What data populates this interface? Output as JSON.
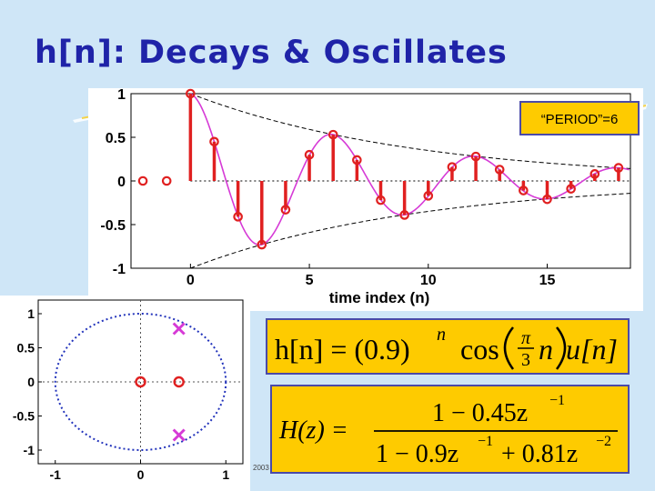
{
  "slide": {
    "title": "h[n]: Decays & Oscillates",
    "footer_year": "2003"
  },
  "colors": {
    "title": "#1f23a8",
    "stem": "#e02020",
    "envelope": "#000000",
    "curve": "#d63ad6",
    "pole_zero": "#d63ad6",
    "equation_box": "#fecb00",
    "equation_border": "#4a4aa8"
  },
  "chart_data": [
    {
      "type": "stem",
      "annotation": "“PERIOD”=6",
      "xlabel": "time index (n)",
      "ylabel": "",
      "xlim": [
        -2.5,
        18.5
      ],
      "ylim": [
        -1,
        1
      ],
      "xticks": [
        "0",
        "5",
        "10",
        "15"
      ],
      "yticks": [
        "1",
        "0.5",
        "0",
        "-0.5",
        "-1"
      ],
      "grid": false,
      "n": [
        -2,
        -1,
        0,
        1,
        2,
        3,
        4,
        5,
        6,
        7,
        8,
        9,
        10,
        11,
        12,
        13,
        14,
        15,
        16,
        17,
        18
      ],
      "values": [
        0,
        0,
        1.0,
        0.45,
        -0.41,
        -0.73,
        -0.33,
        0.3,
        0.53,
        0.24,
        -0.22,
        -0.39,
        -0.17,
        0.16,
        0.28,
        0.13,
        -0.11,
        -0.21,
        -0.09,
        0.08,
        0.15
      ],
      "envelope": "±(0.9)^n",
      "continuous_curve": "(0.9)^t cos(πt/3)"
    },
    {
      "type": "scatter",
      "xlim": [
        -1.2,
        1.2
      ],
      "ylim": [
        -1.2,
        1.2
      ],
      "xticks": [
        "-1",
        "0",
        "1"
      ],
      "yticks": [
        "1",
        "0.5",
        "0",
        "-0.5",
        "-1"
      ],
      "grid": true,
      "unit_circle": true,
      "zeros": [
        {
          "re": 0,
          "im": 0
        },
        {
          "re": 0.45,
          "im": 0
        }
      ],
      "poles": [
        {
          "re": 0.45,
          "im": 0.78
        },
        {
          "re": 0.45,
          "im": -0.78
        }
      ]
    }
  ],
  "equations": {
    "impulse_response": {
      "lhs": "h[n] = (0.9)",
      "exponent": "n",
      "cos": "cos",
      "frac_num": "π",
      "frac_den": "3",
      "tail": "n",
      "step": "u[n]"
    },
    "system_function": {
      "lhs": "H(z) =",
      "numerator": "1 − 0.45z",
      "numerator_exp": "−1",
      "denominator_a": "1 − 0.9z",
      "denominator_a_exp": "−1",
      "denominator_b": "+ 0.81z",
      "denominator_b_exp": "−2"
    }
  }
}
